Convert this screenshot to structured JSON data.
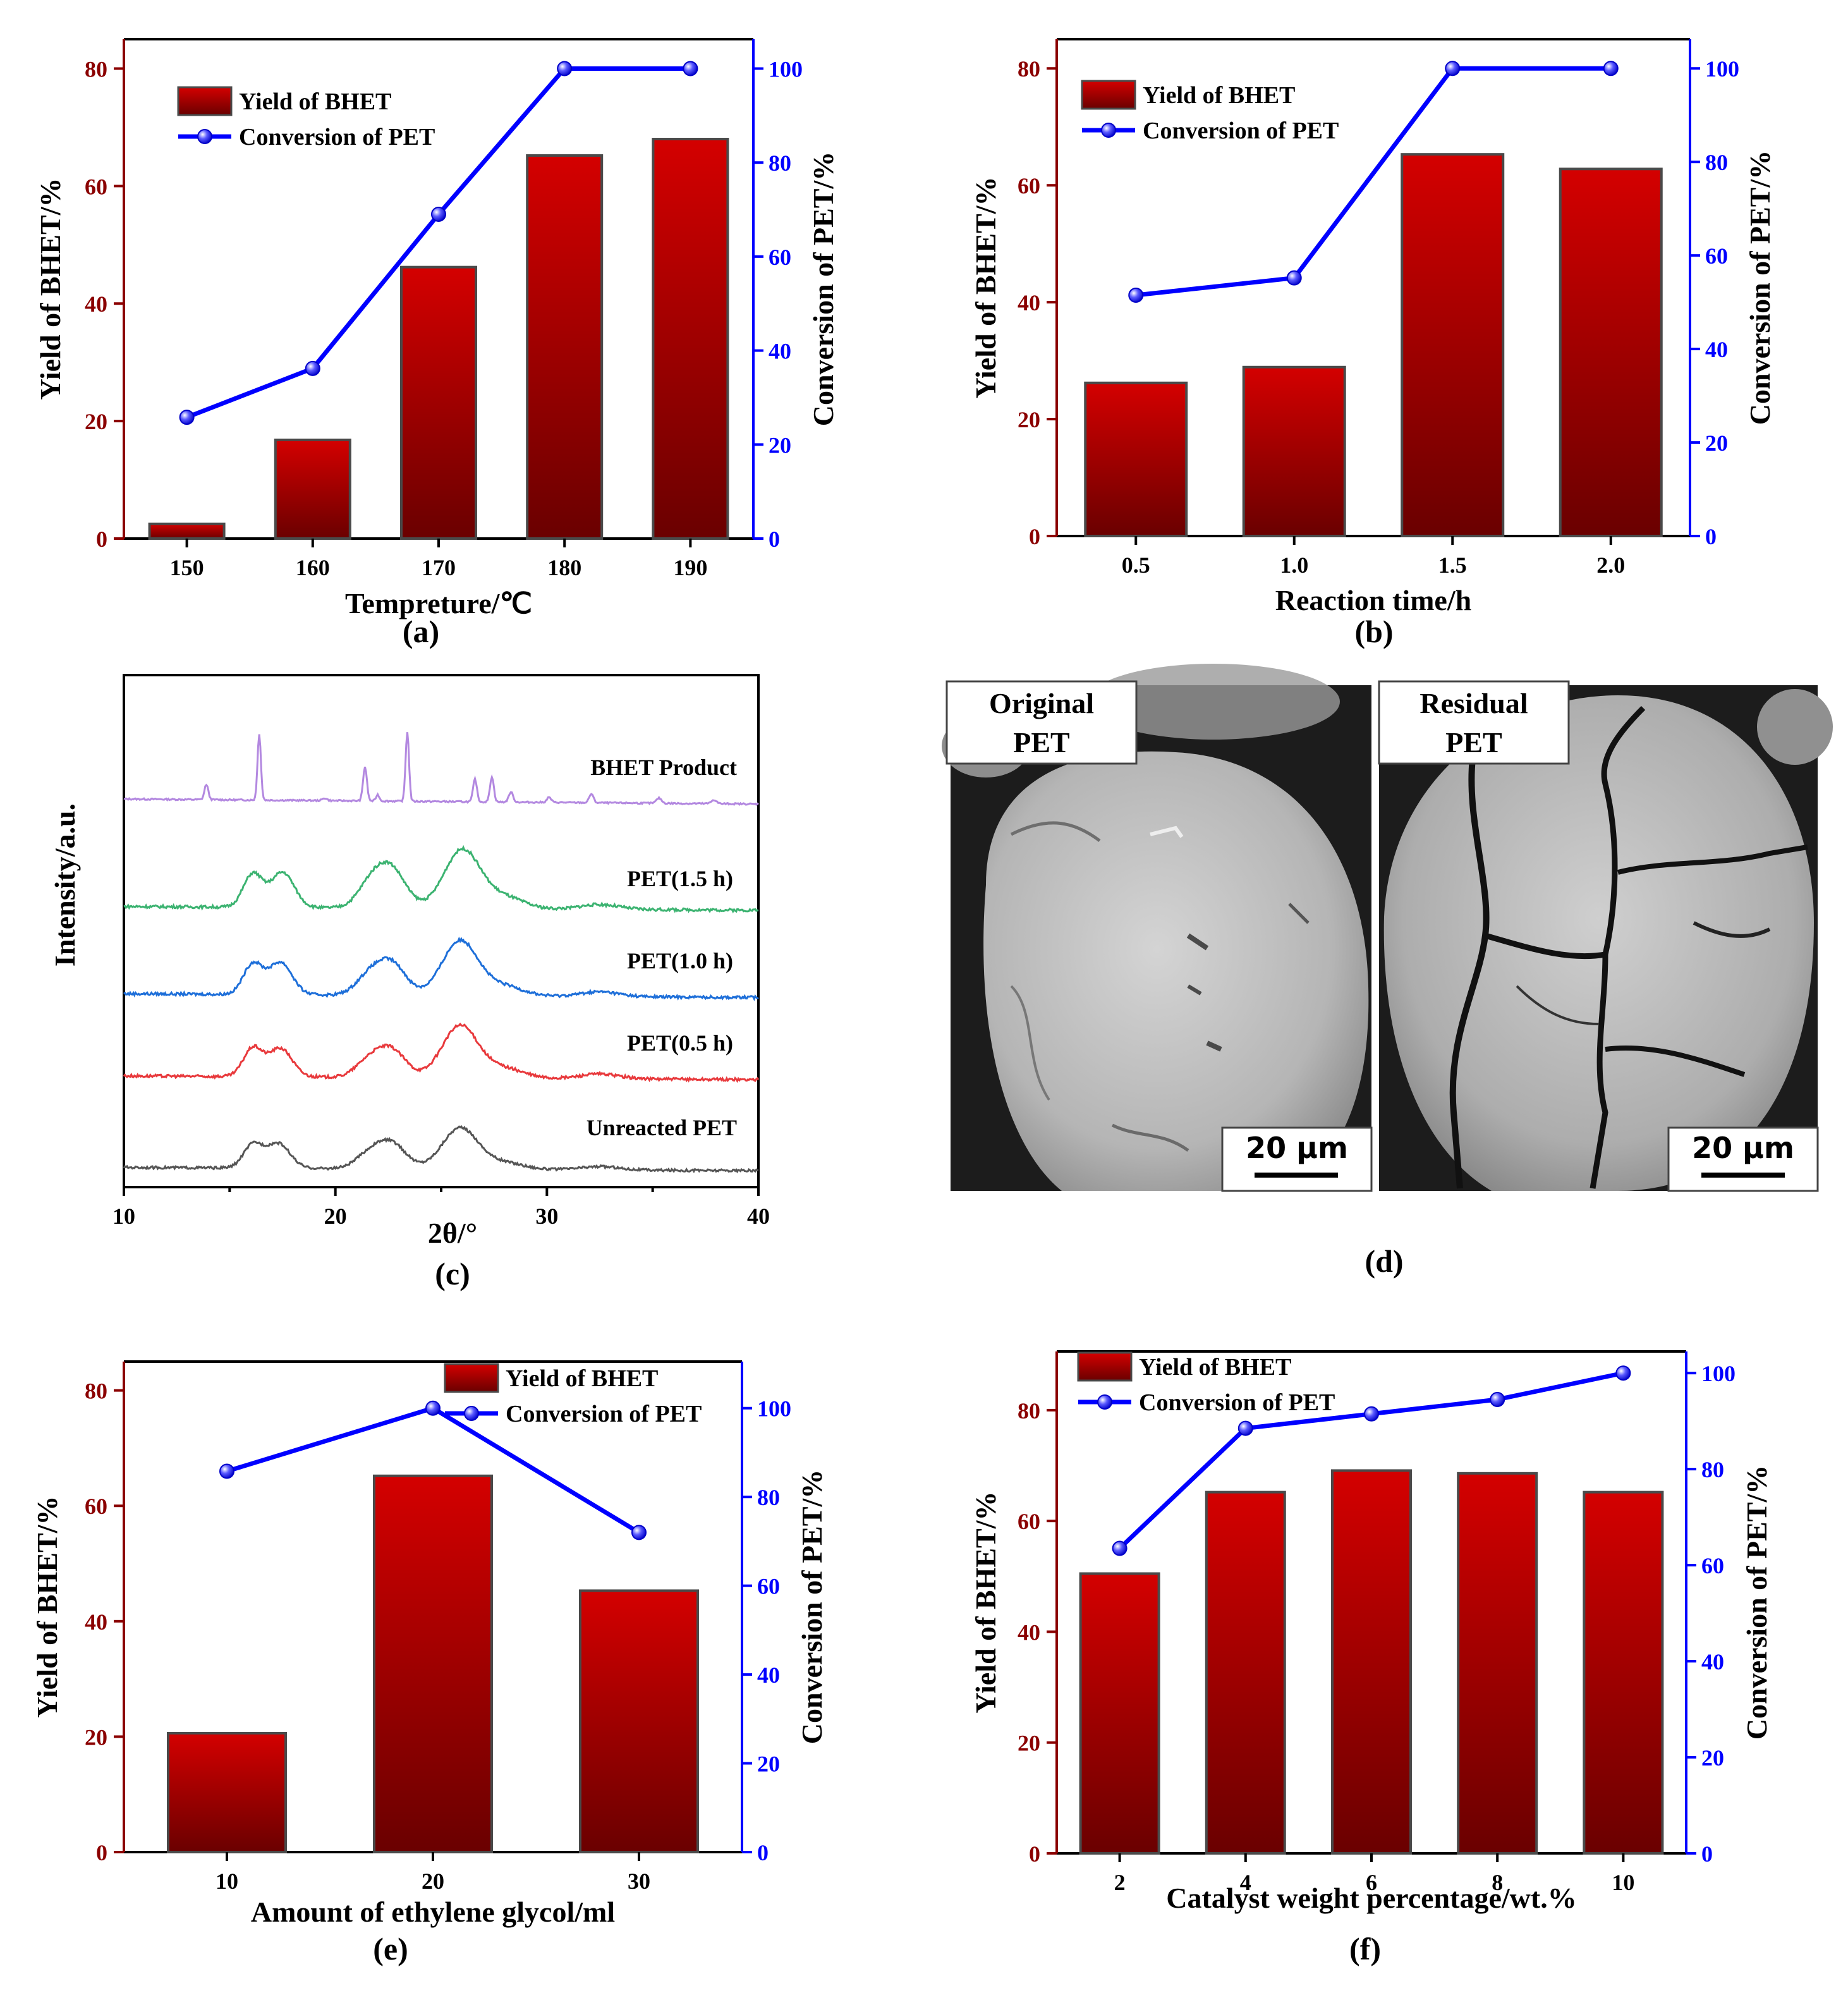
{
  "colors": {
    "bar_top": "#D40000",
    "bar_bottom": "#6A0000",
    "bar_edge": "#4a4a4a",
    "line": "#0000FF",
    "left_axis": "#8B0000",
    "right_axis": "#0000FF",
    "xrd_series": [
      "#B388E0",
      "#3CB371",
      "#1E6FD9",
      "#E8393C",
      "#555555"
    ]
  },
  "legend": {
    "bar": "Yield of BHET",
    "line": "Conversion of PET"
  },
  "chart_data": [
    {
      "id": "a",
      "type": "bar+line",
      "panel_label": "(a)",
      "categories": [
        "150",
        "160",
        "170",
        "180",
        "190"
      ],
      "series": [
        {
          "name": "Yield of BHET",
          "axis": "left",
          "values": [
            2.5,
            16.8,
            46.2,
            65.2,
            68.0
          ]
        },
        {
          "name": "Conversion of PET",
          "axis": "right",
          "values": [
            25.8,
            36.2,
            69.0,
            100,
            100
          ]
        }
      ],
      "xlabel": "Tempreture/℃",
      "ylabel": "Yield of BHET/%",
      "y2label": "Conversion of PET/%",
      "ylim": [
        0,
        85
      ],
      "y2lim": [
        0,
        106.25
      ],
      "yticks": [
        0,
        20,
        40,
        60,
        80
      ],
      "y2ticks": [
        0,
        20,
        40,
        60,
        80,
        100
      ],
      "legend_position": "top-left"
    },
    {
      "id": "b",
      "type": "bar+line",
      "panel_label": "(b)",
      "categories": [
        "0.5",
        "1.0",
        "1.5",
        "2.0"
      ],
      "series": [
        {
          "name": "Yield of BHET",
          "axis": "left",
          "values": [
            26.2,
            28.9,
            65.3,
            62.8
          ]
        },
        {
          "name": "Conversion of PET",
          "axis": "right",
          "values": [
            51.5,
            55.2,
            100,
            100
          ]
        }
      ],
      "xlabel": "Reaction time/h",
      "ylabel": "Yield of BHET/%",
      "y2label": "Conversion of PET/%",
      "ylim": [
        0,
        85
      ],
      "y2lim": [
        0,
        106.25
      ],
      "yticks": [
        0,
        20,
        40,
        60,
        80
      ],
      "y2ticks": [
        0,
        20,
        40,
        60,
        80,
        100
      ],
      "legend_position": "top-left"
    },
    {
      "id": "c",
      "type": "line",
      "panel_label": "(c)",
      "xlabel": "2θ/°",
      "ylabel": "Intensity/a.u.",
      "xlim": [
        10,
        40
      ],
      "xticks": [
        10,
        20,
        30,
        40
      ],
      "series": [
        {
          "name": "BHET Product",
          "baseline": 0.93,
          "peaks": [
            [
              13.9,
              0.12,
              0.09
            ],
            [
              16.4,
              0.52,
              0.08
            ],
            [
              19.5,
              0.02,
              0.1
            ],
            [
              21.4,
              0.27,
              0.09
            ],
            [
              22.0,
              0.05,
              0.08
            ],
            [
              23.4,
              0.55,
              0.08
            ],
            [
              26.6,
              0.18,
              0.09
            ],
            [
              27.4,
              0.2,
              0.09
            ],
            [
              28.3,
              0.08,
              0.1
            ],
            [
              30.1,
              0.04,
              0.1
            ],
            [
              32.1,
              0.07,
              0.1
            ],
            [
              35.3,
              0.04,
              0.12
            ],
            [
              37.9,
              0.03,
              0.12
            ]
          ]
        },
        {
          "name": "PET(1.5 h)",
          "baseline": 0.93,
          "peaks": [
            [
              16.1,
              0.35,
              0.45
            ],
            [
              17.5,
              0.37,
              0.55
            ],
            [
              21.6,
              0.2,
              0.6
            ],
            [
              22.6,
              0.42,
              0.7
            ],
            [
              26.0,
              0.62,
              0.85
            ],
            [
              28.0,
              0.12,
              0.9
            ],
            [
              32.5,
              0.05,
              0.9
            ]
          ]
        },
        {
          "name": "PET(1.0 h)",
          "baseline": 0.93,
          "peaks": [
            [
              16.1,
              0.32,
              0.45
            ],
            [
              17.4,
              0.34,
              0.55
            ],
            [
              21.5,
              0.16,
              0.6
            ],
            [
              22.6,
              0.35,
              0.7
            ],
            [
              25.9,
              0.58,
              0.85
            ],
            [
              28.0,
              0.1,
              0.9
            ],
            [
              32.5,
              0.05,
              0.9
            ]
          ]
        },
        {
          "name": "PET(0.5 h)",
          "baseline": 0.93,
          "peaks": [
            [
              16.1,
              0.3,
              0.45
            ],
            [
              17.4,
              0.3,
              0.55
            ],
            [
              21.5,
              0.14,
              0.6
            ],
            [
              22.6,
              0.3,
              0.7
            ],
            [
              25.9,
              0.55,
              0.85
            ],
            [
              28.0,
              0.1,
              0.9
            ],
            [
              32.5,
              0.05,
              0.9
            ]
          ]
        },
        {
          "name": "Unreacted PET",
          "baseline": 0.93,
          "peaks": [
            [
              16.1,
              0.28,
              0.45
            ],
            [
              17.3,
              0.3,
              0.55
            ],
            [
              21.5,
              0.14,
              0.6
            ],
            [
              22.6,
              0.32,
              0.7
            ],
            [
              25.9,
              0.5,
              0.85
            ],
            [
              28.0,
              0.08,
              0.9
            ],
            [
              32.5,
              0.04,
              0.9
            ]
          ]
        }
      ]
    },
    {
      "id": "e",
      "type": "bar+line",
      "panel_label": "(e)",
      "categories": [
        "10",
        "20",
        "30"
      ],
      "series": [
        {
          "name": "Yield of BHET",
          "axis": "left",
          "values": [
            20.6,
            65.2,
            45.3
          ]
        },
        {
          "name": "Conversion of PET",
          "axis": "right",
          "values": [
            85.8,
            100,
            72.0
          ]
        }
      ],
      "xlabel": "Amount of ethylene glycol/ml",
      "ylabel": "Yield of BHET/%",
      "y2label": "Conversion of PET/%",
      "ylim": [
        0,
        85
      ],
      "y2lim": [
        0,
        110.5
      ],
      "yticks": [
        0,
        20,
        40,
        60,
        80
      ],
      "y2ticks": [
        0,
        20,
        40,
        60,
        80,
        100
      ],
      "legend_position": "top-right"
    },
    {
      "id": "f",
      "type": "bar+line",
      "panel_label": "(f)",
      "categories": [
        "2",
        "4",
        "6",
        "8",
        "10"
      ],
      "series": [
        {
          "name": "Yield of BHET",
          "axis": "left",
          "values": [
            50.5,
            65.2,
            69.1,
            68.6,
            65.2
          ]
        },
        {
          "name": "Conversion of PET",
          "axis": "right",
          "values": [
            63.5,
            88.5,
            91.5,
            94.5,
            100
          ]
        }
      ],
      "xlabel": "Catalyst weight percentage/wt.%",
      "ylabel": "Yield of BHET/%",
      "y2label": "Conversion of PET/%",
      "ylim": [
        0,
        90.6
      ],
      "y2lim": [
        0,
        104.5
      ],
      "yticks": [
        0,
        20,
        40,
        60,
        80
      ],
      "y2ticks": [
        0,
        20,
        40,
        60,
        80,
        100
      ],
      "legend_position": "top-left"
    }
  ],
  "sem": {
    "panel_label": "(d)",
    "left": {
      "label_line1": "Original",
      "label_line2": "PET",
      "scale": "20 μm"
    },
    "right": {
      "label_line1": "Residual",
      "label_line2": "PET",
      "scale": "20 μm"
    }
  }
}
